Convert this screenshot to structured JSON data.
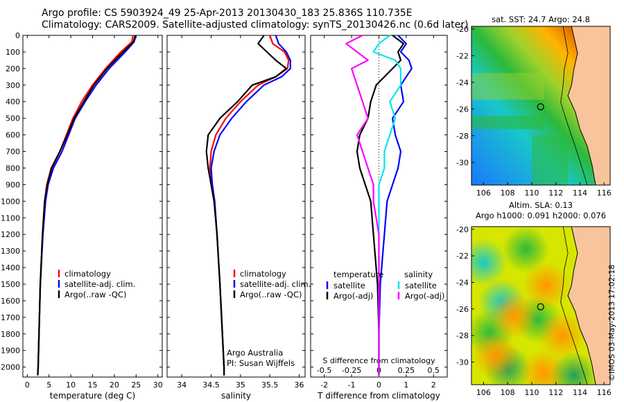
{
  "header": {
    "line1": "Argo profile: CS 5903924_49 25-Apr-2013 20130430_183 25.836S 110.735E",
    "line2": "Climatology: CARS2009. Satellite-adjusted climatology: synTS_20130426.nc (0.6d later)"
  },
  "colors": {
    "climatology": "#ff0000",
    "satellite": "#0000ff",
    "argo": "#000000",
    "cyan": "#00e5ee",
    "magenta": "#ff00ff"
  },
  "chart_data": [
    {
      "type": "line",
      "id": "temperature",
      "xlabel": "temperature (deg C)",
      "ylabel": "",
      "xlim": [
        -1,
        31
      ],
      "ylim": [
        2060,
        0
      ],
      "xticks": [
        "0",
        "5",
        "10",
        "15",
        "20",
        "25",
        "30"
      ],
      "yticks": [
        "0",
        "100",
        "200",
        "300",
        "400",
        "500",
        "600",
        "700",
        "800",
        "900",
        "1000",
        "1100",
        "1200",
        "1300",
        "1400",
        "1500",
        "1600",
        "1700",
        "1800",
        "1900",
        "2000"
      ],
      "legend": [
        "climatology",
        "satellite-adj. clim.",
        "Argo(..raw -QC)"
      ],
      "depth": [
        0,
        40,
        100,
        200,
        300,
        400,
        500,
        600,
        700,
        800,
        900,
        1000,
        1200,
        1500,
        2000,
        2050
      ],
      "series": [
        {
          "name": "climatology",
          "color": "#ff0000",
          "values": [
            24.3,
            24.0,
            21.5,
            18.0,
            15.0,
            12.5,
            10.5,
            9.0,
            7.5,
            5.5,
            4.5,
            4.0,
            3.5,
            3.0,
            2.5,
            2.4
          ]
        },
        {
          "name": "satellite-adj. clim.",
          "color": "#0000ff",
          "values": [
            25.0,
            24.5,
            22.5,
            18.8,
            15.8,
            13.3,
            11.0,
            9.5,
            8.0,
            6.0,
            4.8,
            4.2,
            3.6,
            3.0,
            2.5,
            2.4
          ]
        },
        {
          "name": "Argo(..raw -QC)",
          "color": "#000000",
          "values": [
            24.8,
            24.4,
            22.0,
            18.3,
            15.3,
            13.0,
            10.8,
            9.2,
            7.5,
            5.6,
            4.6,
            4.0,
            3.5,
            3.0,
            2.5,
            2.4
          ]
        }
      ]
    },
    {
      "type": "line",
      "id": "salinity",
      "xlabel": "salinity",
      "ylabel": "",
      "xlim": [
        33.75,
        36.1
      ],
      "ylim": [
        2060,
        0
      ],
      "xticks": [
        "34",
        "34.5",
        "35",
        "35.5",
        "36"
      ],
      "legend": [
        "climatology",
        "satellite-adj. clim.",
        "Argo(..raw -QC)"
      ],
      "annotation": [
        "Argo Australia",
        "PI: Susan Wijffels"
      ],
      "depth": [
        0,
        50,
        100,
        150,
        200,
        250,
        300,
        400,
        500,
        600,
        700,
        800,
        900,
        1000,
        1200,
        1500,
        2000,
        2050
      ],
      "series": [
        {
          "name": "climatology",
          "color": "#ff0000",
          "values": [
            35.5,
            35.55,
            35.75,
            35.82,
            35.8,
            35.6,
            35.3,
            35.0,
            34.75,
            34.58,
            34.5,
            34.48,
            34.52,
            34.56,
            34.6,
            34.65,
            34.72,
            34.72
          ]
        },
        {
          "name": "satellite-adj. clim.",
          "color": "#0000ff",
          "values": [
            35.6,
            35.65,
            35.78,
            35.85,
            35.85,
            35.7,
            35.4,
            35.1,
            34.85,
            34.65,
            34.55,
            34.5,
            34.52,
            34.56,
            34.6,
            34.65,
            34.72,
            34.72
          ]
        },
        {
          "name": "Argo(..raw -QC)",
          "color": "#000000",
          "values": [
            35.4,
            35.3,
            35.45,
            35.6,
            35.78,
            35.6,
            35.2,
            34.95,
            34.65,
            34.45,
            34.42,
            34.45,
            34.5,
            34.55,
            34.6,
            34.65,
            34.72,
            34.72
          ]
        }
      ]
    },
    {
      "type": "line",
      "id": "difference",
      "xlabel": "T difference from climatology",
      "xlabel_top": "S difference from climatology",
      "xlim": [
        -2.5,
        2.5
      ],
      "ylim": [
        2060,
        0
      ],
      "xticks": [
        "-2",
        "-1",
        "0",
        "1",
        "2"
      ],
      "xticks_top": [
        "-0.5",
        "-0.25",
        "0",
        "0.25",
        "0.5"
      ],
      "legend_left_title": "temperature",
      "legend_right_title": "salinity",
      "legend": [
        "satellite",
        "Argo(-adj)",
        "satellite",
        "Argo(-adj)"
      ],
      "depth": [
        0,
        50,
        100,
        150,
        200,
        300,
        400,
        500,
        600,
        700,
        800,
        900,
        1000,
        1200,
        1500,
        1800,
        2050
      ],
      "series": [
        {
          "name": "T satellite",
          "color": "#0000ff",
          "values": [
            0.7,
            1.0,
            0.8,
            1.1,
            1.2,
            0.8,
            0.9,
            0.5,
            0.6,
            0.8,
            0.7,
            0.5,
            0.3,
            0.2,
            0.05,
            0.0,
            0.0
          ]
        },
        {
          "name": "T Argo(-adj)",
          "color": "#000000",
          "values": [
            0.5,
            0.9,
            0.7,
            0.8,
            0.5,
            -0.1,
            -0.3,
            -0.4,
            -0.7,
            -0.8,
            -0.7,
            -0.5,
            -0.3,
            -0.2,
            -0.05,
            0.0,
            0.0
          ]
        },
        {
          "name": "S satellite",
          "color": "#00e5ee",
          "values": [
            0.1,
            0.0,
            -0.05,
            0.15,
            0.2,
            0.2,
            0.1,
            0.15,
            0.1,
            0.05,
            0.05,
            0.0,
            0.0,
            0.0,
            0.0,
            0.0,
            0.0
          ]
        },
        {
          "name": "S Argo(-adj)",
          "color": "#ff00ff",
          "values": [
            -0.15,
            -0.3,
            -0.2,
            -0.1,
            -0.25,
            -0.2,
            -0.15,
            -0.1,
            -0.2,
            -0.15,
            -0.1,
            -0.05,
            -0.05,
            0.0,
            0.0,
            0.0,
            0.0
          ]
        }
      ]
    },
    {
      "type": "heatmap",
      "id": "sst-map",
      "title": "sat. SST: 24.7 Argo: 24.8",
      "xlim": [
        105,
        116.5
      ],
      "ylim": [
        -31.7,
        -19.8
      ],
      "xticks": [
        "106",
        "108",
        "110",
        "112",
        "114",
        "116"
      ],
      "yticks": [
        "-20",
        "-22",
        "-24",
        "-26",
        "-28",
        "-30"
      ],
      "float_position": [
        110.735,
        -25.836
      ]
    },
    {
      "type": "heatmap",
      "id": "sla-map",
      "title": "Altim. SLA: 0.13",
      "subtitle": "Argo h1000: 0.091 h2000: 0.076",
      "xlim": [
        105,
        116.5
      ],
      "ylim": [
        -31.7,
        -19.8
      ],
      "xticks": [
        "106",
        "108",
        "110",
        "112",
        "114",
        "116"
      ],
      "yticks": [
        "-20",
        "-22",
        "-24",
        "-26",
        "-28",
        "-30"
      ],
      "float_position": [
        110.735,
        -25.836
      ]
    }
  ],
  "stamp": "©IMOS 03-May-2013 17:02:18"
}
